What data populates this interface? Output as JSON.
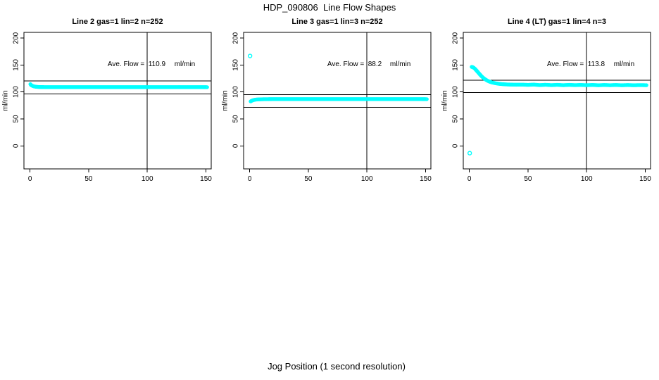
{
  "figure": {
    "title": "HDP_090806  Line Flow Shapes",
    "xlabel": "Jog Position (1 second resolution)",
    "background_color": "#ffffff",
    "axis_color": "#000000",
    "point_color": "#00ffff"
  },
  "chart_data": [
    {
      "type": "scatter",
      "title": "Line 2 gas=1 lin=2 n=252",
      "ylabel": "ml/min",
      "xlim": [
        -5.2,
        154.5
      ],
      "ylim": [
        -42.7,
        210.6
      ],
      "xticks": [
        0,
        50,
        100,
        150
      ],
      "yticks": [
        0,
        50,
        100,
        150,
        200
      ],
      "grid": false,
      "marker": "open-circle",
      "marker_color": "#00ffff",
      "vline_x": 100,
      "hlines": [
        120.5,
        96.6
      ],
      "annotation": {
        "label": "Ave. Flow =",
        "value": "110.9",
        "unit": "ml/min",
        "y": 148
      },
      "series": [
        [
          0.3,
          114.5
        ],
        [
          0.8,
          113
        ],
        [
          1.5,
          112
        ],
        [
          2.5,
          111
        ],
        [
          3.5,
          110.3
        ],
        [
          5,
          109.7
        ],
        [
          7,
          109.3
        ],
        [
          10,
          109.1
        ],
        [
          15,
          109
        ],
        [
          25,
          109
        ],
        [
          40,
          109
        ],
        [
          60,
          109
        ],
        [
          80,
          109
        ],
        [
          100,
          109
        ],
        [
          120,
          109
        ],
        [
          140,
          109
        ],
        [
          151,
          108.9
        ]
      ],
      "outliers": []
    },
    {
      "type": "scatter",
      "title": "Line 3 gas=1 lin=3 n=252",
      "ylabel": "ml/min",
      "xlim": [
        -5.2,
        154.5
      ],
      "ylim": [
        -42.7,
        210.6
      ],
      "xticks": [
        0,
        50,
        100,
        150
      ],
      "yticks": [
        0,
        50,
        100,
        150,
        200
      ],
      "grid": false,
      "marker": "open-circle",
      "marker_color": "#00ffff",
      "vline_x": 100,
      "hlines": [
        94.8,
        71.8
      ],
      "annotation": {
        "label": "Ave. Flow =",
        "value": "88.2",
        "unit": "ml/min",
        "y": 148
      },
      "series": [
        [
          0.8,
          82.5
        ],
        [
          1.5,
          83.5
        ],
        [
          2.5,
          84.5
        ],
        [
          3.5,
          85.2
        ],
        [
          5,
          85.8
        ],
        [
          7,
          86.2
        ],
        [
          10,
          86.5
        ],
        [
          15,
          86.7
        ],
        [
          25,
          86.8
        ],
        [
          40,
          86.8
        ],
        [
          60,
          86.8
        ],
        [
          80,
          86.8
        ],
        [
          100,
          86.8
        ],
        [
          120,
          86.8
        ],
        [
          140,
          86.8
        ],
        [
          151,
          86.7
        ]
      ],
      "outliers": [
        [
          0.3,
          166.8
        ]
      ]
    },
    {
      "type": "scatter",
      "title": "Line 4 (LT) gas=1 lin=4 n=3",
      "ylabel": "ml/min",
      "xlim": [
        -5.2,
        154.5
      ],
      "ylim": [
        -42.7,
        210.6
      ],
      "xticks": [
        0,
        50,
        100,
        150
      ],
      "yticks": [
        0,
        50,
        100,
        150,
        200
      ],
      "grid": false,
      "marker": "open-circle",
      "marker_color": "#00ffff",
      "vline_x": 100,
      "hlines": [
        121.8,
        98.7
      ],
      "annotation": {
        "label": "Ave. Flow =",
        "value": "113.8",
        "unit": "ml/min",
        "y": 148
      },
      "series": [
        [
          2,
          146.5
        ],
        [
          3,
          146
        ],
        [
          4,
          144.5
        ],
        [
          5,
          142.5
        ],
        [
          6,
          140
        ],
        [
          7,
          137.5
        ],
        [
          8,
          135
        ],
        [
          9,
          132.5
        ],
        [
          10,
          130
        ],
        [
          11,
          128
        ],
        [
          12,
          126
        ],
        [
          13,
          124.3
        ],
        [
          14,
          122.8
        ],
        [
          15,
          121.5
        ],
        [
          16,
          120.4
        ],
        [
          17,
          119.4
        ],
        [
          18,
          118.6
        ],
        [
          19,
          117.9
        ],
        [
          20,
          117.3
        ],
        [
          22,
          116.3
        ],
        [
          24,
          115.6
        ],
        [
          26,
          115
        ],
        [
          28,
          114.6
        ],
        [
          30,
          114.2
        ],
        [
          33,
          113.9
        ],
        [
          36,
          113.7
        ],
        [
          40,
          113.5
        ],
        [
          45,
          113.6
        ],
        [
          50,
          113.2
        ],
        [
          55,
          113.7
        ],
        [
          60,
          112.8
        ],
        [
          65,
          113.4
        ],
        [
          70,
          112.7
        ],
        [
          75,
          113.3
        ],
        [
          80,
          112.6
        ],
        [
          85,
          113.2
        ],
        [
          90,
          112.7
        ],
        [
          95,
          113.1
        ],
        [
          100,
          112.6
        ],
        [
          105,
          113.1
        ],
        [
          110,
          112.5
        ],
        [
          115,
          113
        ],
        [
          120,
          112.6
        ],
        [
          125,
          113
        ],
        [
          130,
          112.5
        ],
        [
          135,
          112.9
        ],
        [
          140,
          112.5
        ],
        [
          145,
          112.8
        ],
        [
          151,
          112.6
        ]
      ],
      "outliers": [
        [
          0.3,
          -13.5
        ]
      ]
    }
  ]
}
